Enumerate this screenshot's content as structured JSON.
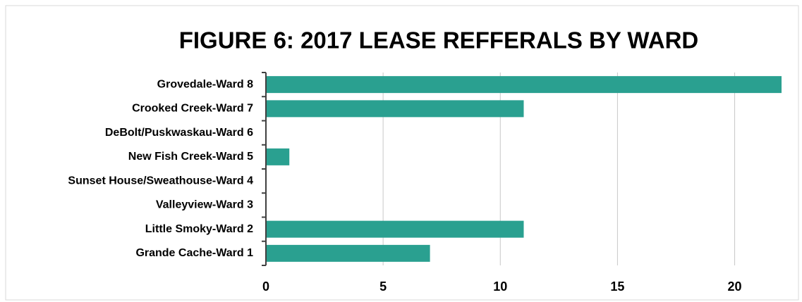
{
  "chart_data": {
    "type": "bar",
    "orientation": "horizontal",
    "title": "FIGURE 6: 2017 LEASE REFFERALS BY WARD",
    "categories": [
      "Grovedale-Ward 8",
      "Crooked Creek-Ward 7",
      "DeBolt/Puskwaskau-Ward 6",
      "New Fish Creek-Ward 5",
      "Sunset House/Sweathouse-Ward 4",
      "Valleyview-Ward 3",
      "Little Smoky-Ward 2",
      "Grande Cache-Ward 1"
    ],
    "values": [
      22,
      11,
      0,
      1,
      0,
      0,
      11,
      7
    ],
    "color": "#2aa090",
    "xlim": [
      0,
      22
    ],
    "xticks": [
      0,
      5,
      10,
      15,
      20
    ],
    "grid": true
  }
}
